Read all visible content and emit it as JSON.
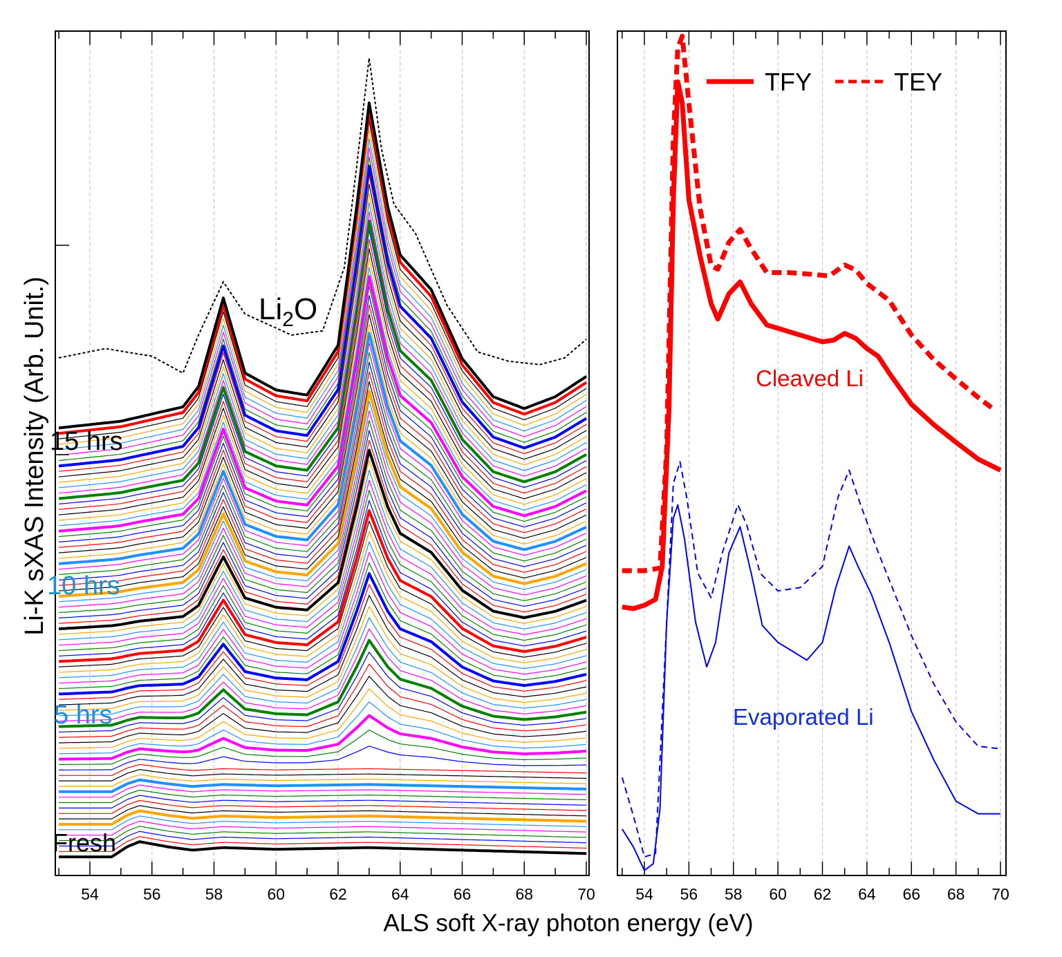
{
  "chart_data": [
    {
      "type": "line",
      "panel": "left",
      "xlabel": "ALS soft X-ray photon energy (eV)",
      "ylabel": "Li-K sXAS Intensity (Arb. Unit.)",
      "xlim": [
        52.9,
        70.1
      ],
      "ylim": [
        0,
        100
      ],
      "x_ticks": [
        "54",
        "56",
        "58",
        "60",
        "62",
        "64",
        "66",
        "68",
        "70"
      ],
      "grid": "vertical dashed",
      "series_count": 80,
      "color_cycle": [
        "#000000",
        "#ff0000",
        "#0000ff",
        "#008000",
        "#ff00ff",
        "#1e90ff",
        "#ffa500"
      ],
      "baseline_first": 2.2,
      "baseline_step": 0.643,
      "fresh_shape": {
        "x": [
          53,
          54.7,
          55.2,
          55.6,
          56.5,
          57.3,
          58.3,
          60,
          63,
          66,
          70
        ],
        "y": [
          0,
          0,
          1.2,
          1.8,
          1.2,
          0.8,
          1.1,
          0.9,
          1.1,
          0.8,
          0.4
        ]
      },
      "final_shape": {
        "x": [
          53,
          55,
          57,
          57.5,
          58.3,
          59,
          60,
          61,
          62,
          62.6,
          63,
          63.6,
          64,
          65,
          66,
          67,
          68,
          69,
          70
        ],
        "y": [
          0,
          0.8,
          2.5,
          4.9,
          15.4,
          6.5,
          4.5,
          3.9,
          9.8,
          26.2,
          38.5,
          26.2,
          20.5,
          16.4,
          8.2,
          3.7,
          2.3,
          3.7,
          6.1
        ]
      },
      "reference": {
        "name": "Li2O",
        "x": [
          53,
          54.5,
          56,
          57,
          57.5,
          58.3,
          59,
          60.5,
          61.5,
          62.2,
          62.6,
          63,
          63.4,
          63.8,
          64.5,
          65.5,
          66.5,
          67.5,
          68.5,
          69.3,
          70
        ],
        "y": [
          61.3,
          62.4,
          61.5,
          59.5,
          64,
          70.3,
          66.5,
          64,
          64.5,
          72,
          84,
          96.8,
          86,
          79.5,
          76,
          67.6,
          62,
          60.9,
          60.5,
          61.3,
          63.5
        ]
      },
      "annotations": {
        "t15": "15 hrs",
        "t10": "10 hrs",
        "t5": "5 hrs",
        "fresh": "Fresh",
        "li2o_main": "Li",
        "li2o_sub": "2",
        "li2o_end": "O"
      }
    },
    {
      "type": "line",
      "panel": "right",
      "xlim": [
        52.8,
        70.2
      ],
      "ylim": [
        0,
        100
      ],
      "x_ticks": [
        "54",
        "56",
        "58",
        "60",
        "62",
        "64",
        "66",
        "68",
        "70"
      ],
      "grid": "vertical dashed",
      "legend": {
        "placement": "top-right",
        "items": [
          "TFY",
          "TEY"
        ]
      },
      "series": [
        {
          "name": "TFY",
          "group": "Cleaved Li",
          "color": "#ff0000",
          "style": "solid-thick",
          "x": [
            53,
            53.5,
            54,
            54.5,
            54.8,
            55.1,
            55.3,
            55.5,
            55.7,
            56,
            56.5,
            57,
            57.3,
            57.8,
            58.3,
            58.8,
            59.5,
            60,
            61,
            62,
            62.5,
            63,
            63.5,
            64,
            64.5,
            65,
            66,
            67,
            68,
            69,
            70
          ],
          "y": [
            31.8,
            31.6,
            32,
            32.7,
            36.6,
            55,
            80,
            94,
            91.5,
            80,
            73.4,
            67.7,
            65.9,
            68.9,
            70.3,
            67.7,
            65.2,
            64.8,
            64,
            63.2,
            63.4,
            64.2,
            63.6,
            62.4,
            61.5,
            59.5,
            55.8,
            53.4,
            51.3,
            49.3,
            48
          ]
        },
        {
          "name": "TEY",
          "group": "Cleaved Li",
          "color": "#ff0000",
          "style": "dashed-thick",
          "x": [
            53,
            54,
            54.7,
            55,
            55.3,
            55.5,
            55.7,
            56,
            56.5,
            57,
            57.3,
            57.8,
            58.3,
            58.8,
            59.5,
            60.5,
            61.5,
            62.3,
            63,
            63.5,
            64,
            65,
            66,
            67,
            68,
            69,
            69.6
          ],
          "y": [
            36.1,
            36.1,
            36.4,
            50.5,
            87.3,
            98,
            99.4,
            91.4,
            79,
            72.2,
            71.8,
            75,
            76.5,
            74.2,
            71.4,
            71.4,
            71.2,
            71,
            72.3,
            71.7,
            70.1,
            68.1,
            64,
            61.1,
            58.8,
            56.6,
            55.4
          ]
        },
        {
          "name": "TFY",
          "group": "Evaporated Li",
          "color": "#0000ff",
          "style": "solid",
          "x": [
            53,
            53.5,
            54,
            54.4,
            54.7,
            55,
            55.3,
            55.5,
            55.8,
            56.3,
            56.8,
            57.2,
            57.8,
            58.3,
            58.8,
            59.3,
            60,
            60.5,
            61.3,
            62,
            62.6,
            63.2,
            63.6,
            64.2,
            65,
            66,
            67,
            68,
            69,
            70
          ],
          "y": [
            5.5,
            3.4,
            0.6,
            1.4,
            7.9,
            30,
            42.3,
            43.9,
            39.9,
            30,
            24.7,
            27.6,
            38.2,
            41.3,
            35.8,
            29.6,
            27.6,
            26.8,
            25.5,
            27.6,
            34.1,
            39,
            36.6,
            33.3,
            27.6,
            19.4,
            13.7,
            8.8,
            7.3,
            7.3
          ]
        },
        {
          "name": "TEY",
          "group": "Evaporated Li",
          "color": "#0000ff",
          "style": "dashed",
          "x": [
            53,
            53.5,
            54,
            54.5,
            55,
            55.3,
            55.6,
            55.9,
            56.4,
            57,
            57.5,
            58.2,
            58.6,
            59.2,
            60,
            61,
            62,
            62.7,
            63.2,
            63.7,
            64.4,
            65,
            66,
            67,
            68,
            69,
            70
          ],
          "y": [
            11.6,
            7.1,
            2.2,
            2.6,
            30,
            46.4,
            49,
            44.8,
            35.8,
            32.9,
            38.2,
            43.9,
            41.5,
            35.8,
            33.7,
            34.1,
            36.6,
            44.8,
            48,
            44,
            39,
            35,
            28.4,
            22.7,
            18.2,
            15.3,
            15
          ]
        }
      ],
      "annotations": {
        "cleaved": "Cleaved Li",
        "evaporated": "Evaporated Li"
      }
    }
  ]
}
